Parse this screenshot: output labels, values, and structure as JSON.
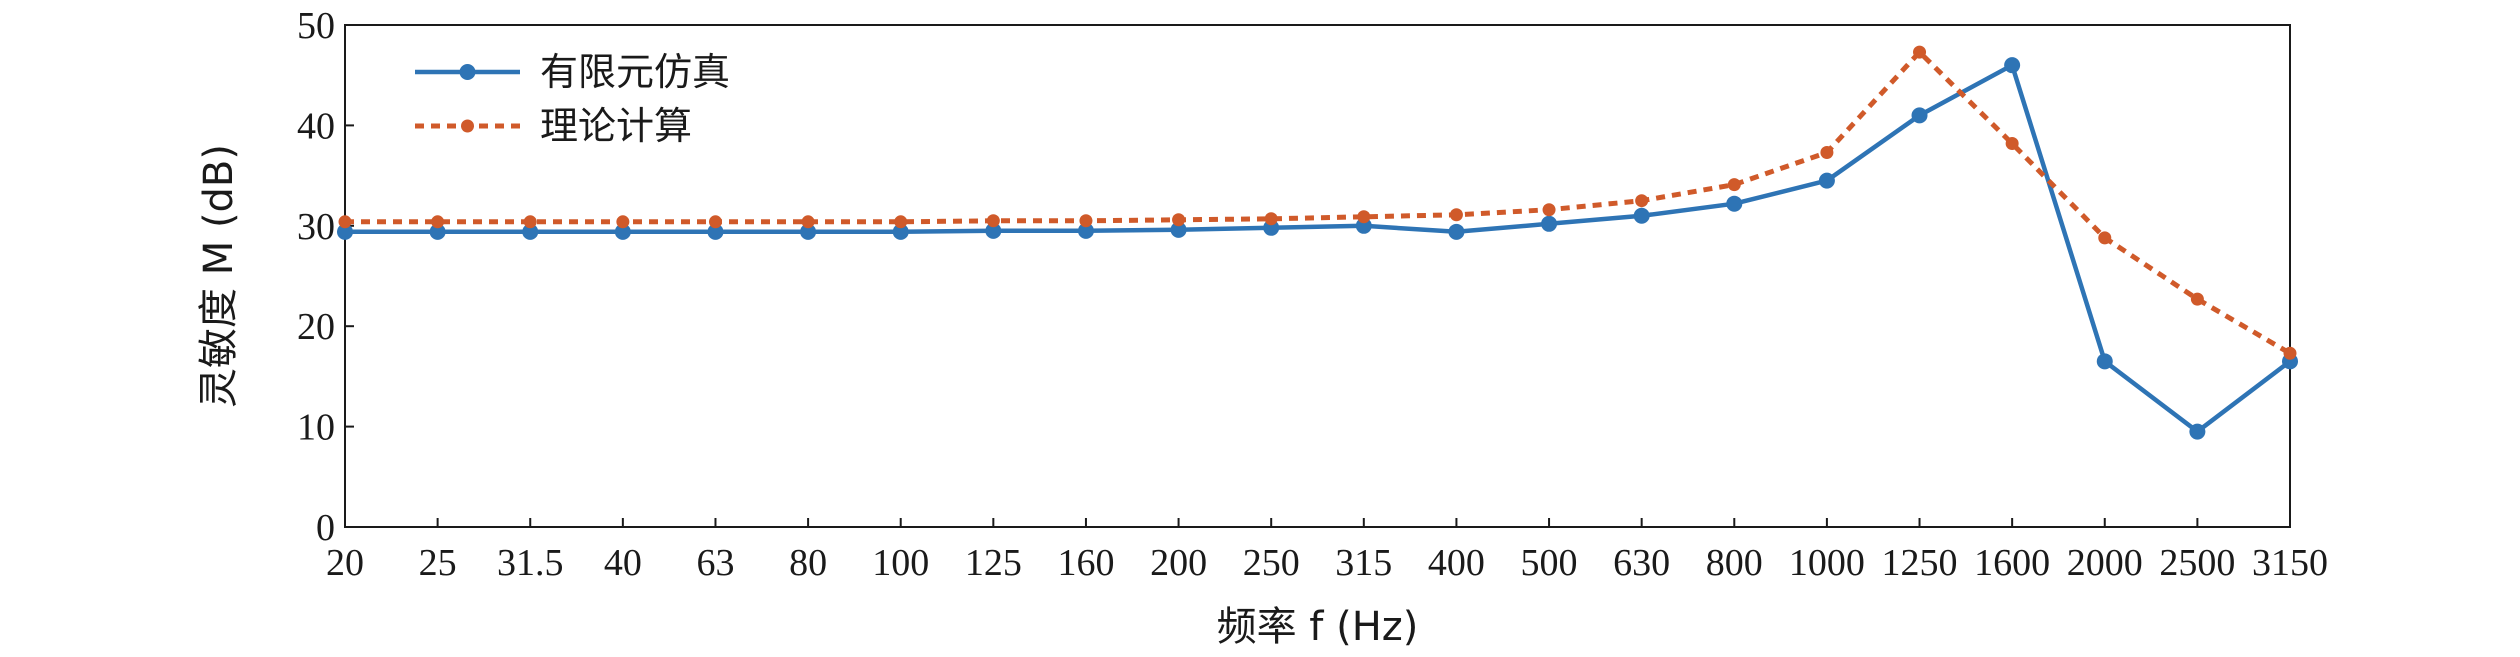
{
  "chart_data": {
    "type": "line",
    "categories": [
      "20",
      "25",
      "31.5",
      "40",
      "63",
      "80",
      "100",
      "125",
      "160",
      "200",
      "250",
      "315",
      "400",
      "500",
      "630",
      "800",
      "1000",
      "1250",
      "1600",
      "2000",
      "2500",
      "3150"
    ],
    "xlabel": "频率 f (Hz)",
    "ylabel": "灵敏度 M (dB)",
    "ylim": [
      0,
      50
    ],
    "yticks": [
      0,
      10,
      20,
      30,
      40,
      50
    ],
    "grid": false,
    "legend_position": "top-left",
    "series": [
      {
        "name": "有限元仿真",
        "color": "#2e74b5",
        "style": "solid",
        "values": [
          29.4,
          29.4,
          29.4,
          29.4,
          29.4,
          29.4,
          29.4,
          29.5,
          29.5,
          29.6,
          29.8,
          30.0,
          29.4,
          30.2,
          31.0,
          32.2,
          34.5,
          41.0,
          46.0,
          16.5,
          9.5,
          16.5
        ]
      },
      {
        "name": "理论计算",
        "color": "#d05a2a",
        "style": "dotted",
        "values": [
          30.4,
          30.4,
          30.4,
          30.4,
          30.4,
          30.4,
          30.4,
          30.5,
          30.5,
          30.6,
          30.7,
          30.9,
          31.1,
          31.6,
          32.5,
          34.1,
          37.3,
          47.3,
          38.2,
          28.8,
          22.7,
          17.3
        ]
      }
    ]
  }
}
